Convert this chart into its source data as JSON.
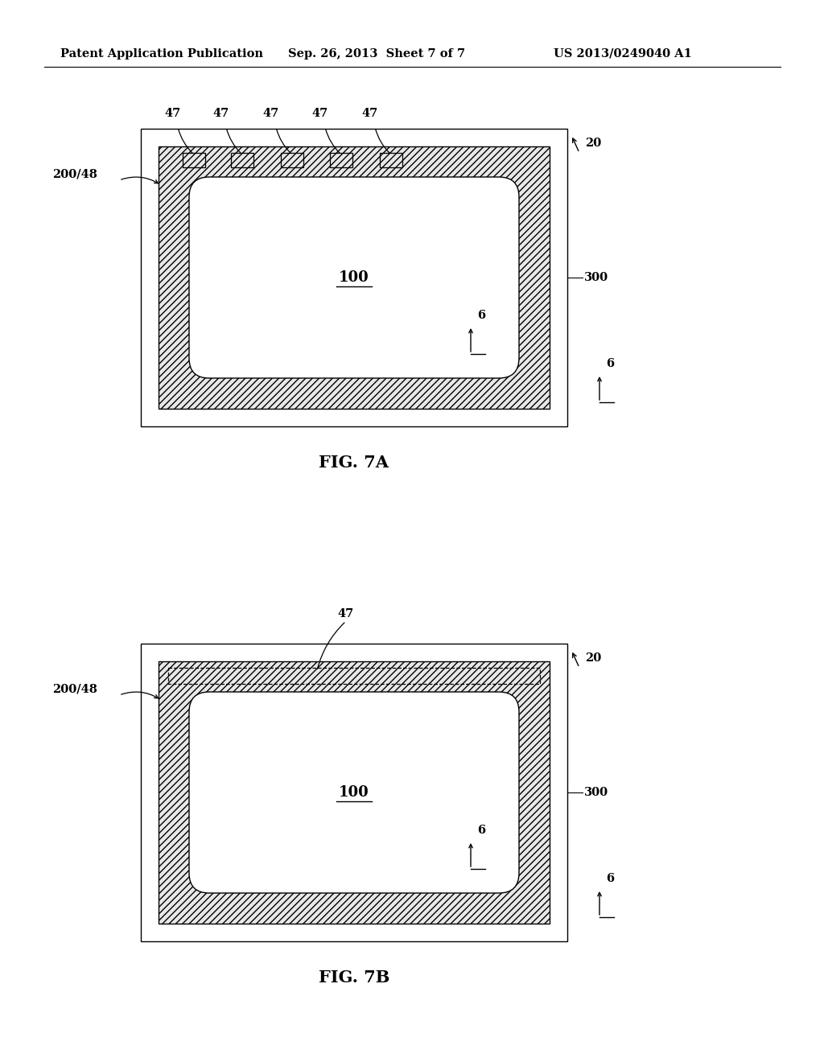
{
  "header_left": "Patent Application Publication",
  "header_mid": "Sep. 26, 2013  Sheet 7 of 7",
  "header_right": "US 2013/0249040 A1",
  "fig_a_label": "FIG. 7A",
  "fig_b_label": "FIG. 7B",
  "bg_color": "#ffffff"
}
